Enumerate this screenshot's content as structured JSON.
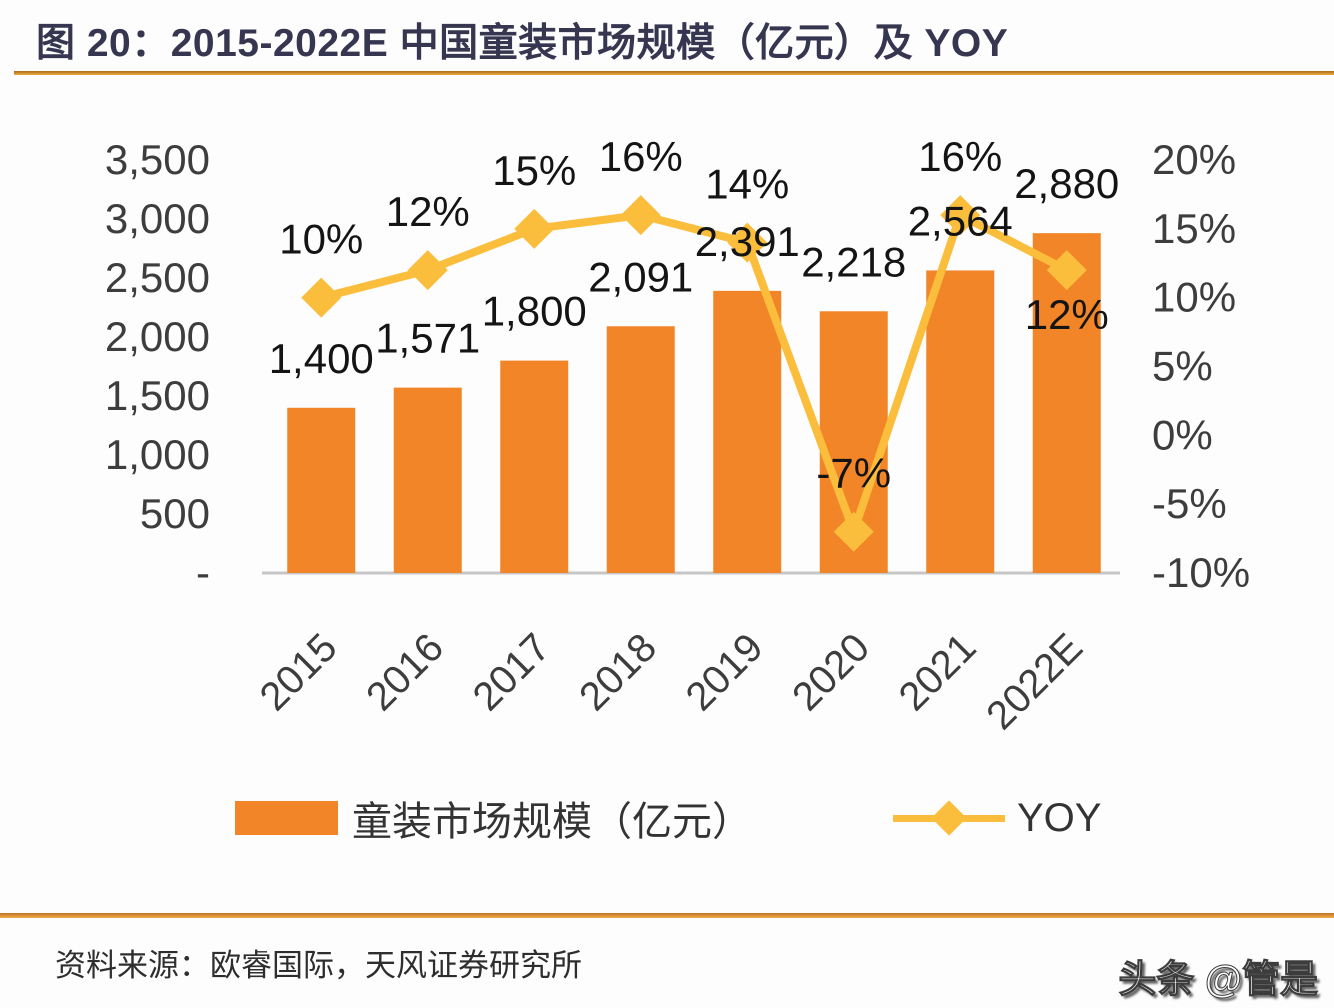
{
  "title": "图 20：2015-2022E 中国童装市场规模（亿元）及 YOY",
  "source": "资料来源：欧睿国际，天风证券研究所",
  "watermark": "头条 @管是",
  "legend": {
    "bar_label": "童装市场规模（亿元）",
    "line_label": "YOY"
  },
  "colors": {
    "bar": "#f18527",
    "line": "#fabe3c",
    "label_text": "#141414",
    "axis_text": "#3d3d3d",
    "baseline": "#c6c6c6",
    "title_text": "#363650",
    "accent_rule": "#e09536"
  },
  "chart_data": {
    "type": "bar",
    "subtype": "bar-line-combo",
    "title": "2015-2022E 中国童装市场规模（亿元）及 YOY",
    "categories": [
      "2015",
      "2016",
      "2017",
      "2018",
      "2019",
      "2020",
      "2021",
      "2022E"
    ],
    "series": [
      {
        "name": "童装市场规模（亿元）",
        "type": "bar",
        "axis": "left",
        "values": [
          1400,
          1571,
          1800,
          2091,
          2391,
          2218,
          2564,
          2880
        ],
        "labels": [
          "1,400",
          "1,571",
          "1,800",
          "2,091",
          "2,391",
          "2,218",
          "2,564",
          "2,880"
        ]
      },
      {
        "name": "YOY",
        "type": "line",
        "axis": "right",
        "marker": "diamond",
        "values": [
          10,
          12,
          15,
          16,
          14,
          -7,
          16,
          12
        ],
        "labels": [
          "10%",
          "12%",
          "15%",
          "16%",
          "14%",
          "-7%",
          "16%",
          "12%"
        ],
        "label_positions": [
          "above",
          "above",
          "above",
          "above",
          "above",
          "above",
          "above",
          "below"
        ]
      }
    ],
    "left_axis": {
      "ticks": [
        "3,500",
        "3,000",
        "2,500",
        "2,000",
        "1,500",
        "1,000",
        "500",
        "-"
      ],
      "values": [
        3500,
        3000,
        2500,
        2000,
        1500,
        1000,
        500,
        0
      ],
      "min": 0,
      "max": 3500
    },
    "right_axis": {
      "ticks": [
        "20%",
        "15%",
        "10%",
        "5%",
        "0%",
        "-5%",
        "-10%"
      ],
      "values": [
        20,
        15,
        10,
        5,
        0,
        -5,
        -10
      ],
      "min": -10,
      "max": 20
    },
    "grid": false,
    "legend_position": "bottom"
  }
}
